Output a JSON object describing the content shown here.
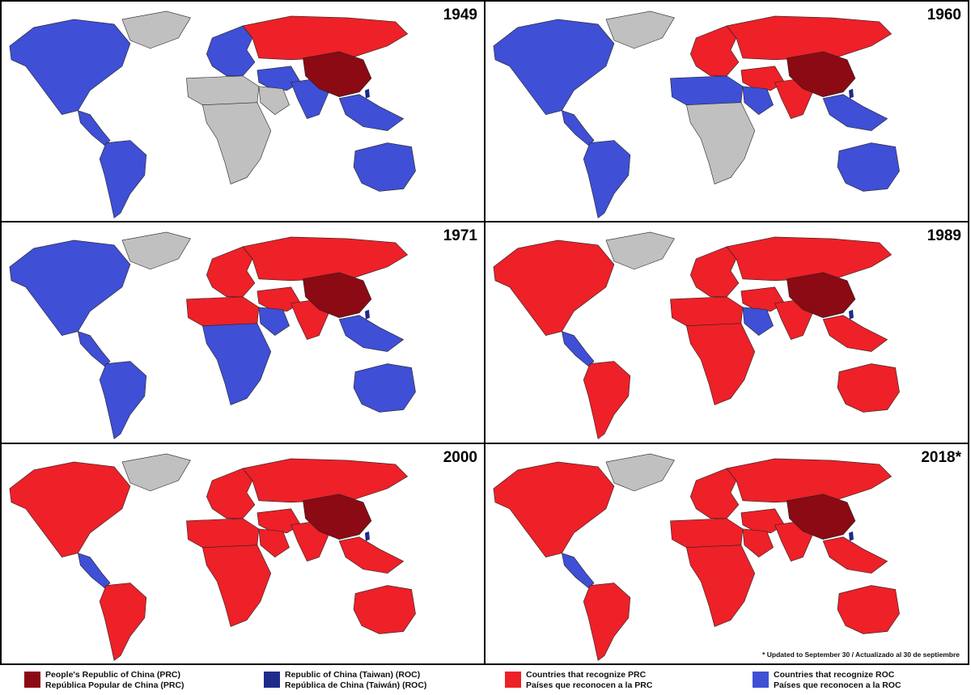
{
  "panels": [
    {
      "year": "1949",
      "china": "prc",
      "scheme": "1949"
    },
    {
      "year": "1960",
      "china": "prc",
      "scheme": "1960"
    },
    {
      "year": "1971",
      "china": "prc",
      "scheme": "1971"
    },
    {
      "year": "1989",
      "china": "prc",
      "scheme": "1989"
    },
    {
      "year": "2000",
      "china": "prc",
      "scheme": "2000"
    },
    {
      "year": "2018*",
      "china": "prc",
      "scheme": "2018"
    }
  ],
  "note": "* Updated to September 30 / Actualizado al 30 de septiembre",
  "colors": {
    "prc": "#8b0a14",
    "roc": "#1f2a8a",
    "recognize_prc": "#ee2028",
    "recognize_roc": "#3f4fd6",
    "unrecognized": "#c0c0c0"
  },
  "legend": [
    {
      "color": "prc",
      "line1": "People's Republic of China (PRC)",
      "line2": "República Popular de China (PRC)"
    },
    {
      "color": "roc",
      "line1": "Republic of China (Taiwan) (ROC)",
      "line2": "República de China (Taiwán) (ROC)"
    },
    {
      "color": "recognize_prc",
      "line1": "Countries that recognize PRC",
      "line2": "Países que reconocen a la PRC"
    },
    {
      "color": "recognize_roc",
      "line1": "Countries that recognize ROC",
      "line2": "Países que reconocen a la ROC"
    }
  ],
  "schemes": {
    "1949": {
      "na": "recognize_roc",
      "greenland": "unrecognized",
      "ca": "recognize_roc",
      "sa": "recognize_roc",
      "eu": "recognize_roc",
      "ru": "recognize_prc",
      "na_africa": "unrecognized",
      "africa": "unrecognized",
      "mideast": "recognize_roc",
      "india": "recognize_roc",
      "sea": "recognize_roc",
      "aus": "recognize_roc",
      "arabia": "unrecognized"
    },
    "1960": {
      "na": "recognize_roc",
      "greenland": "unrecognized",
      "ca": "recognize_roc",
      "sa": "recognize_roc",
      "eu": "recognize_prc",
      "ru": "recognize_prc",
      "na_africa": "recognize_roc",
      "africa": "unrecognized",
      "mideast": "recognize_prc",
      "india": "recognize_prc",
      "sea": "recognize_roc",
      "aus": "recognize_roc",
      "arabia": "recognize_roc"
    },
    "1971": {
      "na": "recognize_roc",
      "greenland": "unrecognized",
      "ca": "recognize_roc",
      "sa": "recognize_roc",
      "eu": "recognize_prc",
      "ru": "recognize_prc",
      "na_africa": "recognize_prc",
      "africa": "recognize_roc",
      "mideast": "recognize_prc",
      "india": "recognize_prc",
      "sea": "recognize_roc",
      "aus": "recognize_roc",
      "arabia": "recognize_roc"
    },
    "1989": {
      "na": "recognize_prc",
      "greenland": "unrecognized",
      "ca": "recognize_roc",
      "sa": "recognize_prc",
      "eu": "recognize_prc",
      "ru": "recognize_prc",
      "na_africa": "recognize_prc",
      "africa": "recognize_prc",
      "mideast": "recognize_prc",
      "india": "recognize_prc",
      "sea": "recognize_prc",
      "aus": "recognize_prc",
      "arabia": "recognize_roc"
    },
    "2000": {
      "na": "recognize_prc",
      "greenland": "unrecognized",
      "ca": "recognize_roc",
      "sa": "recognize_prc",
      "eu": "recognize_prc",
      "ru": "recognize_prc",
      "na_africa": "recognize_prc",
      "africa": "recognize_prc",
      "mideast": "recognize_prc",
      "india": "recognize_prc",
      "sea": "recognize_prc",
      "aus": "recognize_prc",
      "arabia": "recognize_prc"
    },
    "2018": {
      "na": "recognize_prc",
      "greenland": "unrecognized",
      "ca": "recognize_roc",
      "sa": "recognize_prc",
      "eu": "recognize_prc",
      "ru": "recognize_prc",
      "na_africa": "recognize_prc",
      "africa": "recognize_prc",
      "mideast": "recognize_prc",
      "india": "recognize_prc",
      "sea": "recognize_prc",
      "aus": "recognize_prc",
      "arabia": "recognize_prc"
    }
  }
}
